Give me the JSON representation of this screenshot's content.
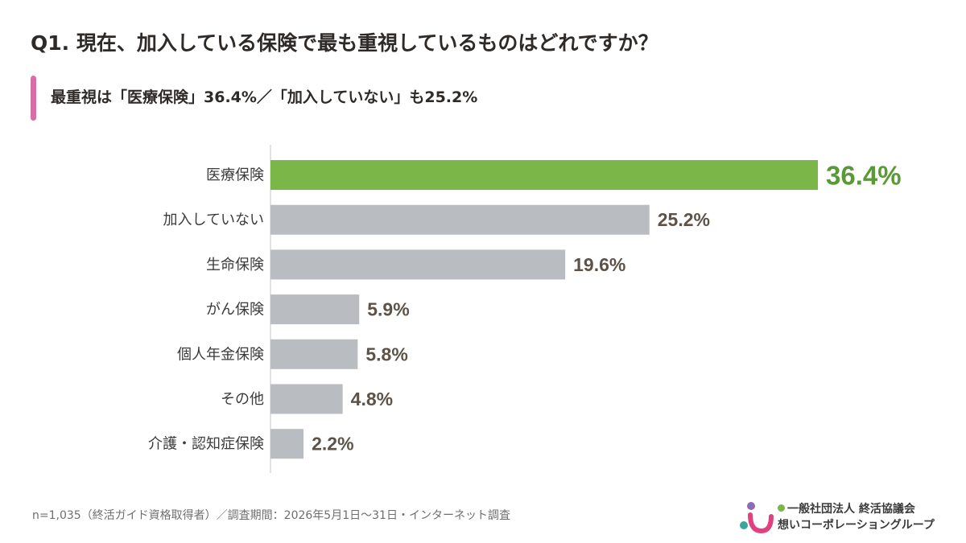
{
  "title": "Q1.  現在、加入している保険で最も重視しているものはどれですか？",
  "subtitle": "最重視は「医療保険」36.4%／「加入していない」も25.2%",
  "chart_data": {
    "type": "bar",
    "orientation": "horizontal",
    "categories": [
      "医療保険",
      "加入していない",
      "生命保険",
      "がん保険",
      "個人年金保険",
      "その他",
      "介護・認知症保険"
    ],
    "values": [
      36.4,
      25.2,
      19.6,
      5.9,
      5.8,
      4.8,
      2.2
    ],
    "value_labels": [
      "36.4%",
      "25.2%",
      "19.6%",
      "5.9%",
      "5.8%",
      "4.8%",
      "2.2%"
    ],
    "unit": "%",
    "highlight_index": 0,
    "xlim": [
      0,
      36.4
    ],
    "grid": false,
    "colors": {
      "highlight_bar": "#7ab648",
      "bar": "#b9bdc1",
      "highlight_label": "#5a9a36",
      "label": "#5e5247",
      "category_text": "#3b3b3b",
      "axis": "#d9d9d9"
    }
  },
  "footnote": "n=1,035（終活ガイド資格取得者）／調査期間：2026年5月1日〜31日・インターネット調査",
  "org": {
    "line1": "一般社団法人 終活協議会",
    "line2": "想いコーポレーショングループ",
    "colors": {
      "purple": "#8e6bb3",
      "pink": "#e0417f",
      "teal": "#3aa6a0",
      "green": "#7ab648"
    }
  }
}
